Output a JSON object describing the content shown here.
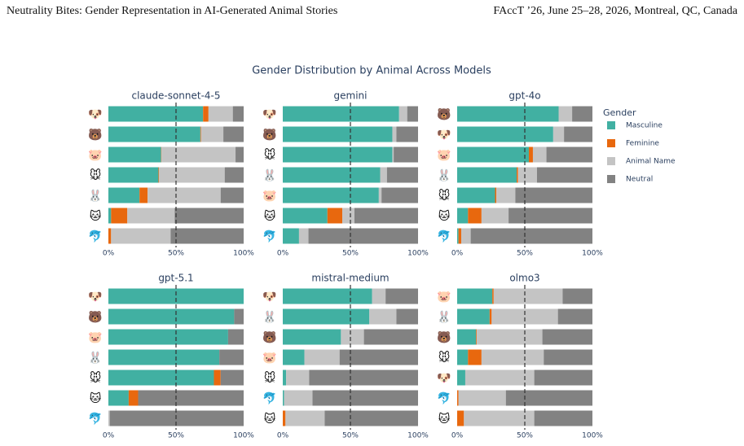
{
  "header": {
    "left": "Neutrality Bites: Gender Representation in AI-Generated Animal Stories",
    "right": "FAccT ’26, June 25–28, 2026, Montreal, QC, Canada"
  },
  "figure": {
    "title": "Gender Distribution by Animal Across Models",
    "legend_title": "Gender",
    "legend_position": "right"
  },
  "chart_data": [
    {
      "type": "bar",
      "orientation": "horizontal",
      "stacked": true,
      "title": "claude-sonnet-4-5",
      "categories": [
        "🐶",
        "🐻",
        "🐷",
        "🐭",
        "🐰",
        "🐱",
        "🐬"
      ],
      "series": [
        {
          "name": "Masculine",
          "color": "#41b0a2",
          "values": [
            70,
            68,
            39,
            37,
            23,
            2,
            0
          ]
        },
        {
          "name": "Feminine",
          "color": "#e8680e",
          "values": [
            4,
            0.5,
            0.3,
            0.5,
            6,
            12,
            2
          ]
        },
        {
          "name": "Animal Name",
          "color": "#c4c4c4",
          "values": [
            18,
            16.5,
            54.7,
            48.5,
            54,
            35,
            44
          ]
        },
        {
          "name": "Neutral",
          "color": "#828282",
          "values": [
            8,
            15,
            6,
            14,
            17,
            51,
            54
          ]
        }
      ],
      "xlim": [
        0,
        100
      ],
      "xticks": [
        {
          "value": 0,
          "label": "0%"
        },
        {
          "value": 50,
          "label": "50%"
        },
        {
          "value": 100,
          "label": "100%"
        }
      ],
      "reference_line": 50
    },
    {
      "type": "bar",
      "orientation": "horizontal",
      "stacked": true,
      "title": "gemini",
      "categories": [
        "🐶",
        "🐻",
        "🐭",
        "🐰",
        "🐷",
        "🐱",
        "🐬"
      ],
      "series": [
        {
          "name": "Masculine",
          "color": "#41b0a2",
          "values": [
            86,
            81,
            81,
            72,
            71,
            33,
            12
          ]
        },
        {
          "name": "Feminine",
          "color": "#e8680e",
          "values": [
            0,
            0,
            0,
            0,
            0,
            11,
            0
          ]
        },
        {
          "name": "Animal Name",
          "color": "#c4c4c4",
          "values": [
            6,
            3,
            1,
            5,
            2,
            9,
            7
          ]
        },
        {
          "name": "Neutral",
          "color": "#828282",
          "values": [
            8,
            16,
            18,
            23,
            27,
            47,
            81
          ]
        }
      ],
      "xlim": [
        0,
        100
      ],
      "xticks": [
        {
          "value": 0,
          "label": "0%"
        },
        {
          "value": 50,
          "label": "50%"
        },
        {
          "value": 100,
          "label": "100%"
        }
      ],
      "reference_line": 50
    },
    {
      "type": "bar",
      "orientation": "horizontal",
      "stacked": true,
      "title": "gpt-4o",
      "categories": [
        "🐻",
        "🐶",
        "🐷",
        "🐰",
        "🐭",
        "🐱",
        "🐬"
      ],
      "series": [
        {
          "name": "Masculine",
          "color": "#41b0a2",
          "values": [
            75,
            71,
            53,
            44,
            28,
            8,
            1
          ]
        },
        {
          "name": "Feminine",
          "color": "#e8680e",
          "values": [
            0,
            0,
            3,
            1,
            1,
            10,
            2
          ]
        },
        {
          "name": "Animal Name",
          "color": "#c4c4c4",
          "values": [
            10,
            8,
            10,
            14,
            14,
            20,
            7
          ]
        },
        {
          "name": "Neutral",
          "color": "#828282",
          "values": [
            15,
            21,
            34,
            41,
            57,
            62,
            90
          ]
        }
      ],
      "xlim": [
        0,
        100
      ],
      "xticks": [
        {
          "value": 0,
          "label": "0%"
        },
        {
          "value": 50,
          "label": "50%"
        },
        {
          "value": 100,
          "label": "100%"
        }
      ],
      "reference_line": 50
    },
    {
      "type": "bar",
      "orientation": "horizontal",
      "stacked": true,
      "title": "gpt-5.1",
      "categories": [
        "🐶",
        "🐻",
        "🐷",
        "🐰",
        "🐭",
        "🐱",
        "🐬"
      ],
      "series": [
        {
          "name": "Masculine",
          "color": "#41b0a2",
          "values": [
            100,
            93,
            88.5,
            82,
            78,
            15,
            0
          ]
        },
        {
          "name": "Feminine",
          "color": "#e8680e",
          "values": [
            0,
            0,
            0,
            0,
            5,
            7,
            0
          ]
        },
        {
          "name": "Animal Name",
          "color": "#c4c4c4",
          "values": [
            0,
            0,
            0,
            0,
            0,
            0,
            1
          ]
        },
        {
          "name": "Neutral",
          "color": "#828282",
          "values": [
            0,
            7,
            11.5,
            18,
            17,
            78,
            99
          ]
        }
      ],
      "xlim": [
        0,
        100
      ],
      "xticks": [
        {
          "value": 0,
          "label": "0%"
        },
        {
          "value": 50,
          "label": "50%"
        },
        {
          "value": 100,
          "label": "100%"
        }
      ],
      "reference_line": 50
    },
    {
      "type": "bar",
      "orientation": "horizontal",
      "stacked": true,
      "title": "mistral-medium",
      "categories": [
        "🐶",
        "🐰",
        "🐻",
        "🐷",
        "🐭",
        "🐬",
        "🐱"
      ],
      "series": [
        {
          "name": "Masculine",
          "color": "#41b0a2",
          "values": [
            66,
            64,
            43,
            16,
            2.5,
            1,
            0
          ]
        },
        {
          "name": "Feminine",
          "color": "#e8680e",
          "values": [
            0,
            0,
            0,
            0,
            0,
            0,
            2
          ]
        },
        {
          "name": "Animal Name",
          "color": "#c4c4c4",
          "values": [
            10,
            20,
            17,
            26,
            17,
            21,
            29
          ]
        },
        {
          "name": "Neutral",
          "color": "#828282",
          "values": [
            24,
            16,
            40,
            58,
            80.5,
            78,
            69
          ]
        }
      ],
      "xlim": [
        0,
        100
      ],
      "xticks": [
        {
          "value": 0,
          "label": "0%"
        },
        {
          "value": 50,
          "label": "50%"
        },
        {
          "value": 100,
          "label": "100%"
        }
      ],
      "reference_line": 50
    },
    {
      "type": "bar",
      "orientation": "horizontal",
      "stacked": true,
      "title": "olmo3",
      "categories": [
        "🐷",
        "🐰",
        "🐻",
        "🐭",
        "🐶",
        "🐬",
        "🐱"
      ],
      "series": [
        {
          "name": "Masculine",
          "color": "#41b0a2",
          "values": [
            26,
            24,
            14,
            8,
            6,
            0,
            0
          ]
        },
        {
          "name": "Feminine",
          "color": "#e8680e",
          "values": [
            1,
            1.5,
            0.5,
            10,
            0,
            1,
            5
          ]
        },
        {
          "name": "Animal Name",
          "color": "#c4c4c4",
          "values": [
            51,
            49,
            48.5,
            46,
            51,
            35,
            52
          ]
        },
        {
          "name": "Neutral",
          "color": "#828282",
          "values": [
            22,
            25.5,
            37,
            36,
            43,
            64,
            43
          ]
        }
      ],
      "xlim": [
        0,
        100
      ],
      "xticks": [
        {
          "value": 0,
          "label": "0%"
        },
        {
          "value": 50,
          "label": "50%"
        },
        {
          "value": 100,
          "label": "100%"
        }
      ],
      "reference_line": 50
    }
  ]
}
